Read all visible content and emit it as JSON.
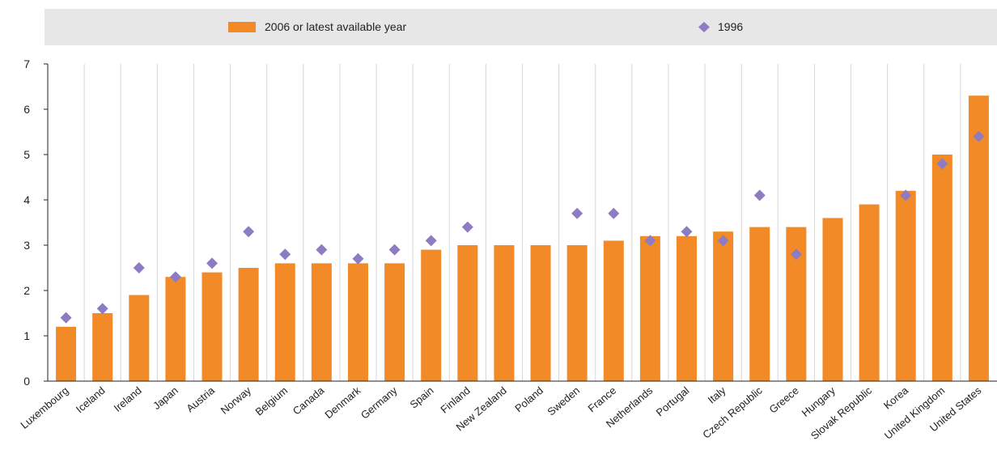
{
  "chart_data": {
    "type": "bar",
    "categories": [
      "Luxembourg",
      "Iceland",
      "Ireland",
      "Japan",
      "Austria",
      "Norway",
      "Belgium",
      "Canada",
      "Denmark",
      "Germany",
      "Spain",
      "Finland",
      "New Zealand",
      "Poland",
      "Sweden",
      "France",
      "Netherlands",
      "Portugal",
      "Italy",
      "Czech Republic",
      "Greece",
      "Hungary",
      "Slovak Republic",
      "Korea",
      "United Kingdom",
      "United States"
    ],
    "series": [
      {
        "name": "2006 or latest available year",
        "kind": "bar",
        "color": "#f28a27",
        "values": [
          1.2,
          1.5,
          1.9,
          2.3,
          2.4,
          2.5,
          2.6,
          2.6,
          2.6,
          2.6,
          2.9,
          3.0,
          3.0,
          3.0,
          3.0,
          3.1,
          3.2,
          3.2,
          3.3,
          3.4,
          3.4,
          3.6,
          3.9,
          4.2,
          5.0,
          6.3
        ]
      },
      {
        "name": "1996",
        "kind": "marker",
        "marker": "diamond",
        "color": "#8e7cc3",
        "values": [
          1.4,
          1.6,
          2.5,
          2.3,
          2.6,
          3.3,
          2.8,
          2.9,
          2.7,
          2.9,
          3.1,
          3.4,
          null,
          null,
          3.7,
          3.7,
          3.1,
          3.3,
          3.1,
          4.1,
          2.8,
          null,
          null,
          4.1,
          4.8,
          5.4
        ]
      }
    ],
    "ylim": [
      0,
      7
    ],
    "yticks": [
      "0",
      "1",
      "2",
      "3",
      "4",
      "5",
      "6",
      "7"
    ],
    "grid": "vertical",
    "legend_position": "top"
  }
}
